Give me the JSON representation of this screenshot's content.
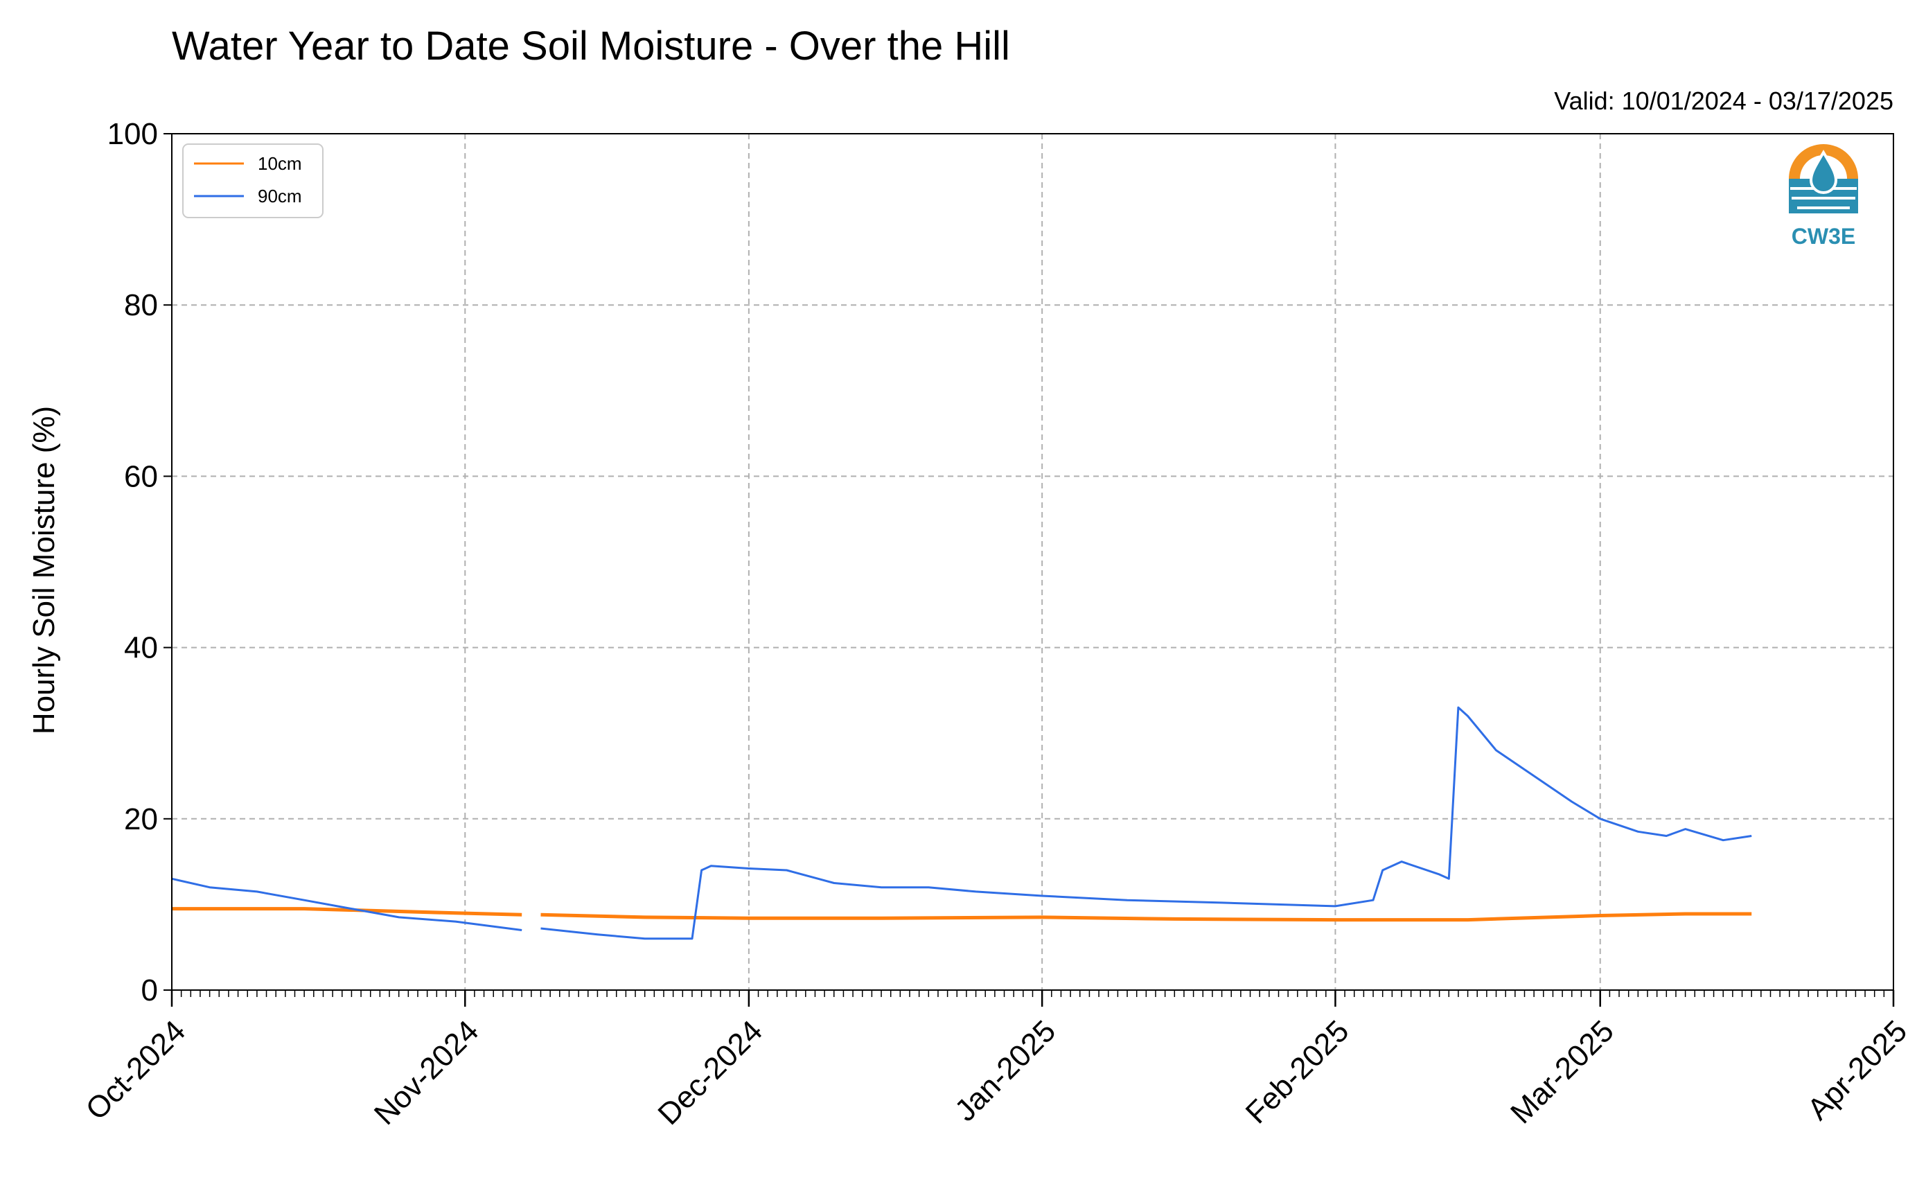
{
  "chart_data": {
    "type": "line",
    "title": "Water Year to Date Soil Moisture - Over the Hill",
    "subtitle": "Valid: 10/01/2024 - 03/17/2025",
    "xlabel": "",
    "ylabel": "Hourly Soil Moisture (%)",
    "xlim": [
      "2024-10-01",
      "2025-04-01"
    ],
    "ylim": [
      0,
      100
    ],
    "x_ticks": [
      "Oct-2024",
      "Nov-2024",
      "Dec-2024",
      "Jan-2025",
      "Feb-2025",
      "Mar-2025",
      "Apr-2025"
    ],
    "y_ticks": [
      0,
      20,
      40,
      60,
      80,
      100
    ],
    "grid": true,
    "legend_position": "top-left",
    "logo_text": "CW3E",
    "series": [
      {
        "name": "10cm",
        "color": "#ff7f0e",
        "points": [
          [
            "2024-10-01",
            9.5
          ],
          [
            "2024-10-15",
            9.5
          ],
          [
            "2024-10-31",
            9.0
          ],
          [
            "2024-11-07",
            8.8
          ],
          [
            "2024-11-08",
            null
          ],
          [
            "2024-11-09",
            8.8
          ],
          [
            "2024-11-20",
            8.5
          ],
          [
            "2024-12-01",
            8.4
          ],
          [
            "2024-12-15",
            8.4
          ],
          [
            "2025-01-01",
            8.5
          ],
          [
            "2025-01-15",
            8.3
          ],
          [
            "2025-02-01",
            8.2
          ],
          [
            "2025-02-15",
            8.2
          ],
          [
            "2025-03-01",
            8.7
          ],
          [
            "2025-03-10",
            8.9
          ],
          [
            "2025-03-17",
            8.9
          ]
        ]
      },
      {
        "name": "90cm",
        "color": "#2f6ee6",
        "points": [
          [
            "2024-10-01",
            13.0
          ],
          [
            "2024-10-05",
            12.0
          ],
          [
            "2024-10-10",
            11.5
          ],
          [
            "2024-10-15",
            10.5
          ],
          [
            "2024-10-20",
            9.5
          ],
          [
            "2024-10-25",
            8.5
          ],
          [
            "2024-10-31",
            8.0
          ],
          [
            "2024-11-07",
            7.0
          ],
          [
            "2024-11-08",
            null
          ],
          [
            "2024-11-09",
            7.2
          ],
          [
            "2024-11-15",
            6.5
          ],
          [
            "2024-11-20",
            6.0
          ],
          [
            "2024-11-25",
            6.0
          ],
          [
            "2024-11-26",
            14.0
          ],
          [
            "2024-11-27",
            14.5
          ],
          [
            "2024-12-01",
            14.2
          ],
          [
            "2024-12-05",
            14.0
          ],
          [
            "2024-12-10",
            12.5
          ],
          [
            "2024-12-15",
            12.0
          ],
          [
            "2024-12-20",
            12.0
          ],
          [
            "2024-12-25",
            11.5
          ],
          [
            "2025-01-01",
            11.0
          ],
          [
            "2025-01-10",
            10.5
          ],
          [
            "2025-01-20",
            10.2
          ],
          [
            "2025-02-01",
            9.8
          ],
          [
            "2025-02-05",
            10.5
          ],
          [
            "2025-02-06",
            14.0
          ],
          [
            "2025-02-08",
            15.0
          ],
          [
            "2025-02-12",
            13.5
          ],
          [
            "2025-02-13",
            13.0
          ],
          [
            "2025-02-14",
            33.0
          ],
          [
            "2025-02-15",
            32.0
          ],
          [
            "2025-02-18",
            28.0
          ],
          [
            "2025-02-22",
            25.0
          ],
          [
            "2025-02-26",
            22.0
          ],
          [
            "2025-03-01",
            20.0
          ],
          [
            "2025-03-05",
            18.5
          ],
          [
            "2025-03-08",
            18.0
          ],
          [
            "2025-03-10",
            18.8
          ],
          [
            "2025-03-14",
            17.5
          ],
          [
            "2025-03-17",
            18.0
          ]
        ]
      }
    ]
  }
}
